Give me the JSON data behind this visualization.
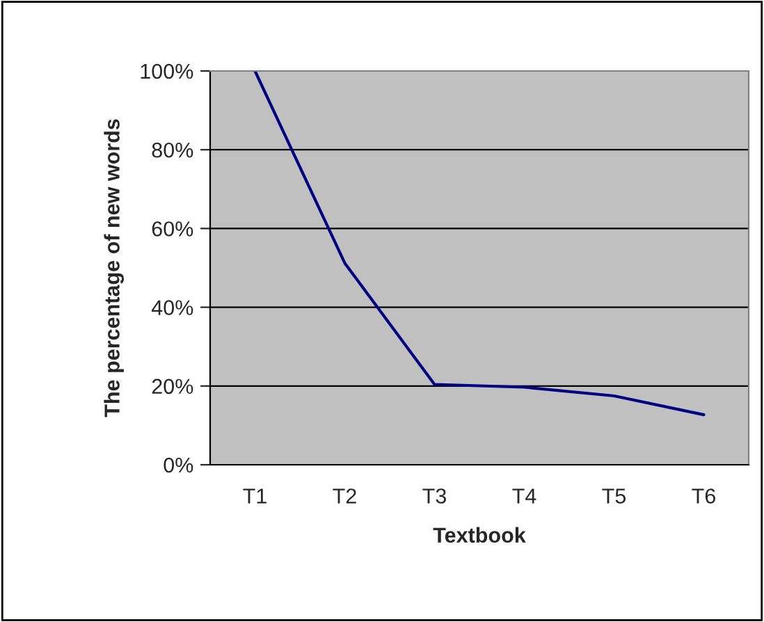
{
  "chart_data": {
    "type": "line",
    "xlabel": "Textbook",
    "ylabel": "The percentage of new words",
    "categories": [
      "T1",
      "T2",
      "T3",
      "T4",
      "T5",
      "T6"
    ],
    "series": [
      {
        "color": "#000080",
        "values": [
          100,
          51.2,
          20.4,
          19.7,
          17.5,
          12.7
        ]
      }
    ],
    "ylim": [
      0,
      100
    ],
    "yticks": [
      {
        "value": 0,
        "label": "0%"
      },
      {
        "value": 20,
        "label": "20%"
      },
      {
        "value": 40,
        "label": "40%"
      },
      {
        "value": 60,
        "label": "60%"
      },
      {
        "value": 80,
        "label": "80%"
      },
      {
        "value": 100,
        "label": "100%"
      }
    ],
    "grid": "y",
    "marker": "none",
    "line_style": "solid"
  }
}
